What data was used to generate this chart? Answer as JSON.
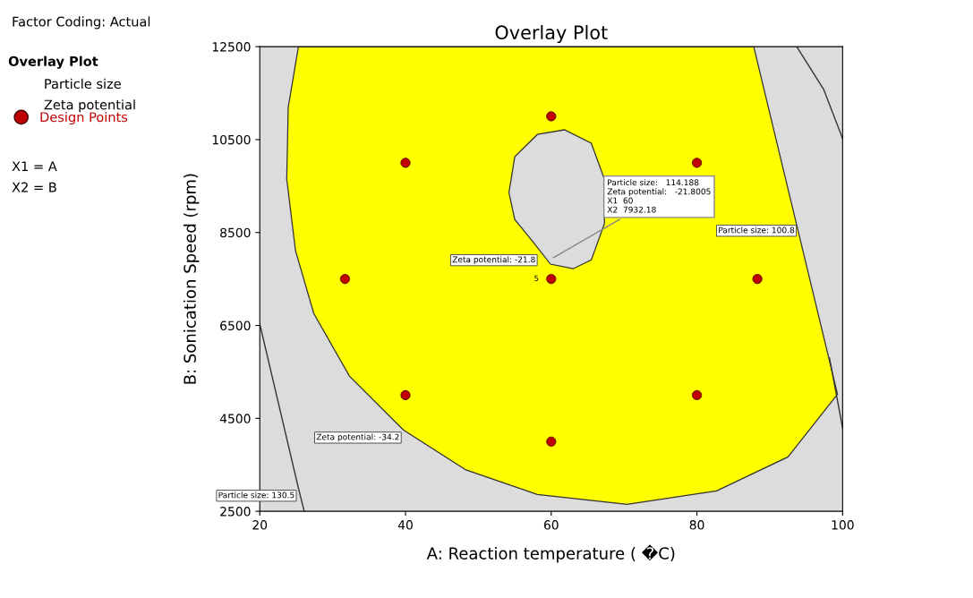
{
  "chart_data": {
    "type": "scatter",
    "title": "Overlay Plot",
    "xlabel": "A: Reaction temperature ( �C)",
    "ylabel": "B: Sonication Speed (rpm)",
    "xlim": [
      20,
      100
    ],
    "ylim": [
      2500,
      12500
    ],
    "xticks": [
      20,
      40,
      60,
      80,
      100
    ],
    "yticks": [
      2500,
      4500,
      6500,
      8500,
      10500,
      12500
    ],
    "grid": false,
    "legend": "left",
    "legend_title": "Overlay Plot",
    "series": [
      {
        "type": "area",
        "color": "#ffff00",
        "x": [
          25.3,
          23.9,
          23.7,
          24.9,
          27.4,
          32.3,
          39.7,
          48.3,
          58.1,
          70.4,
          82.7,
          92.5,
          99.3,
          94.1,
          87.8
        ],
        "values": [
          12500,
          11190,
          9650,
          8110,
          6760,
          5410,
          4250,
          3390,
          2860,
          2650,
          2940,
          3670,
          5020,
          8400,
          12500
        ]
      },
      {
        "type": "area",
        "color": "#dcdcdc",
        "x": [
          54.2,
          55.0,
          58.1,
          61.8,
          65.5,
          67.3,
          67.3,
          65.5,
          63.0,
          59.9,
          57.5,
          55.0
        ],
        "values": [
          9360,
          10130,
          10610,
          10710,
          10420,
          9650,
          8690,
          7910,
          7720,
          7820,
          8300,
          8780
        ]
      },
      {
        "type": "line",
        "color": "#333333",
        "x": [
          20,
          25.3,
          26.1
        ],
        "values": [
          6530,
          3000,
          2500
        ]
      },
      {
        "type": "line",
        "color": "#333333",
        "x": [
          93.7,
          97.4,
          100
        ],
        "values": [
          12500,
          11580,
          10520
        ]
      },
      {
        "type": "line",
        "color": "#333333",
        "x": [
          98.2,
          100
        ],
        "values": [
          5800,
          4290
        ]
      },
      {
        "name": "Design Points",
        "color": "#c00000",
        "marker": "circle",
        "x": [
          40,
          60,
          80,
          31.7,
          60,
          88.3,
          40,
          80,
          60
        ],
        "values": [
          10000,
          11000,
          10000,
          7500,
          7500,
          7500,
          5000,
          5000,
          4000
        ]
      }
    ],
    "annotations": [
      "Factor Coding: Actual",
      "Particle size",
      "Zeta potential",
      "X1 = A",
      "X2 = B",
      {
        "text": "5",
        "x": 60,
        "y": 7500
      },
      {
        "text": "Particle size: 130.5",
        "x": 25.3,
        "y": 3000
      },
      {
        "text": "Zeta potential: -34.2",
        "x": 39.7,
        "y": 4250
      },
      {
        "text": "Zeta potential: -21.8",
        "x": 59.9,
        "y": 7820
      },
      {
        "text": "Particle size: 100.8",
        "x": 94.1,
        "y": 8400
      },
      {
        "text": "Particle size:   114.188\nZeta potential:   -21.8005\nX1  60\nX2  7932.18",
        "x": 60,
        "y": 7932.18
      }
    ]
  }
}
